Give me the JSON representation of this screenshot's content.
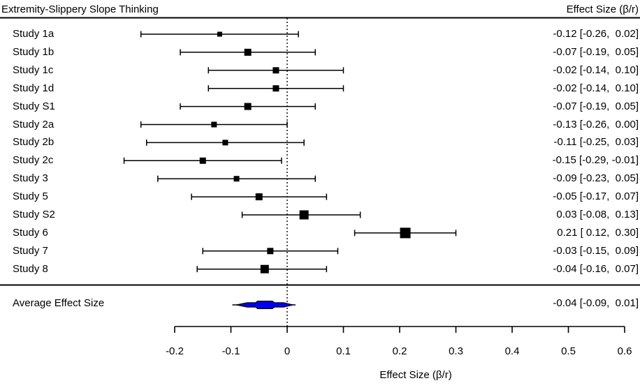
{
  "chart_data": {
    "type": "forest",
    "title": "Extremity-Slippery Slope Thinking",
    "column_header": "Effect Size (β/r)",
    "xlabel": "Effect Size (β/r)",
    "xlim": [
      -0.2,
      0.6
    ],
    "xticks": [
      -0.2,
      -0.1,
      0,
      0.1,
      0.2,
      0.3,
      0.4,
      0.5,
      0.6
    ],
    "zero_reference_line": 0,
    "grid": false,
    "studies": [
      {
        "label": "Study 1a",
        "est": -0.12,
        "lo": -0.26,
        "hi": 0.02,
        "text": "-0.12 [-0.26,  0.02]",
        "marker_size": 7
      },
      {
        "label": "Study 1b",
        "est": -0.07,
        "lo": -0.19,
        "hi": 0.05,
        "text": "-0.07 [-0.19,  0.05]",
        "marker_size": 10
      },
      {
        "label": "Study 1c",
        "est": -0.02,
        "lo": -0.14,
        "hi": 0.1,
        "text": "-0.02 [-0.14,  0.10]",
        "marker_size": 9
      },
      {
        "label": "Study 1d",
        "est": -0.02,
        "lo": -0.14,
        "hi": 0.1,
        "text": "-0.02 [-0.14,  0.10]",
        "marker_size": 9
      },
      {
        "label": "Study S1",
        "est": -0.07,
        "lo": -0.19,
        "hi": 0.05,
        "text": "-0.07 [-0.19,  0.05]",
        "marker_size": 10
      },
      {
        "label": "Study 2a",
        "est": -0.13,
        "lo": -0.26,
        "hi": 0.0,
        "text": "-0.13 [-0.26,  0.00]",
        "marker_size": 8
      },
      {
        "label": "Study 2b",
        "est": -0.11,
        "lo": -0.25,
        "hi": 0.03,
        "text": "-0.11 [-0.25,  0.03]",
        "marker_size": 8
      },
      {
        "label": "Study 2c",
        "est": -0.15,
        "lo": -0.29,
        "hi": -0.01,
        "text": "-0.15 [-0.29, -0.01]",
        "marker_size": 9
      },
      {
        "label": "Study 3",
        "est": -0.09,
        "lo": -0.23,
        "hi": 0.05,
        "text": "-0.09 [-0.23,  0.05]",
        "marker_size": 8
      },
      {
        "label": "Study 5",
        "est": -0.05,
        "lo": -0.17,
        "hi": 0.07,
        "text": "-0.05 [-0.17,  0.07]",
        "marker_size": 10
      },
      {
        "label": "Study S2",
        "est": 0.03,
        "lo": -0.08,
        "hi": 0.13,
        "text": " 0.03 [-0.08,  0.13]",
        "marker_size": 13
      },
      {
        "label": "Study 6",
        "est": 0.21,
        "lo": 0.12,
        "hi": 0.3,
        "text": " 0.21 [ 0.12,  0.30]",
        "marker_size": 15
      },
      {
        "label": "Study 7",
        "est": -0.03,
        "lo": -0.15,
        "hi": 0.09,
        "text": "-0.03 [-0.15,  0.09]",
        "marker_size": 9
      },
      {
        "label": "Study 8",
        "est": -0.04,
        "lo": -0.16,
        "hi": 0.07,
        "text": "-0.04 [-0.16,  0.07]",
        "marker_size": 12
      }
    ],
    "summary": {
      "label": "Average Effect Size",
      "est": -0.04,
      "lo": -0.09,
      "hi": 0.01,
      "text": "-0.04 [-0.09,  0.01]"
    },
    "colors": {
      "marker": "#000000",
      "summary_fill": "#0000EE",
      "line": "#000000",
      "text": "#000000",
      "background": "#ffffff"
    }
  }
}
